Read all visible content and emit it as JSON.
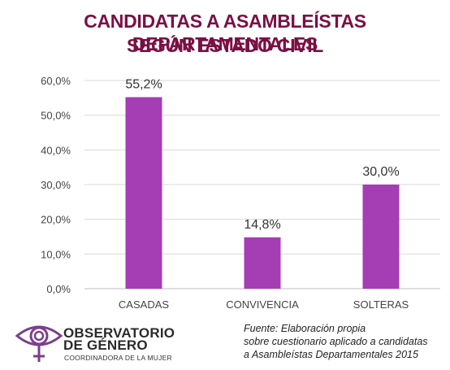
{
  "title_line1": "CANDIDATAS A ASAMBLEÍSTAS DEPARTAMENTALES",
  "title_line2": "SEGÚN ESTADO CIVIL",
  "colors": {
    "title": "#7a1043",
    "bar": "#a53db4",
    "grid": "#d9d9d9",
    "logo": "#7b3f8d"
  },
  "chart_data": {
    "type": "bar",
    "title": "CANDIDATAS A ASAMBLEÍSTAS DEPARTAMENTALES SEGÚN ESTADO CIVIL",
    "categories": [
      "CASADAS",
      "CONVIVENCIA",
      "SOLTERAS"
    ],
    "values": [
      55.2,
      14.8,
      30.0
    ],
    "data_labels": [
      "55,2%",
      "14,8%",
      "30,0%"
    ],
    "yticks": [
      0,
      10,
      20,
      30,
      40,
      50,
      60
    ],
    "ytick_labels": [
      "0,0%",
      "10,0%",
      "20,0%",
      "30,0%",
      "40,0%",
      "50,0%",
      "60,0%"
    ],
    "ylim": [
      0,
      60
    ],
    "grid": true,
    "legend": "none"
  },
  "logo": {
    "line1": "OBSERVATORIO",
    "line2": "DE GÉNERO",
    "line3": "COORDINADORA DE LA MUJER",
    "icon": "eye-venus-icon"
  },
  "source": {
    "line1": "Fuente: Elaboración propia",
    "line2": "sobre cuestionario aplicado a candidatas",
    "line3": "a Asambleístas Departamentales 2015"
  }
}
